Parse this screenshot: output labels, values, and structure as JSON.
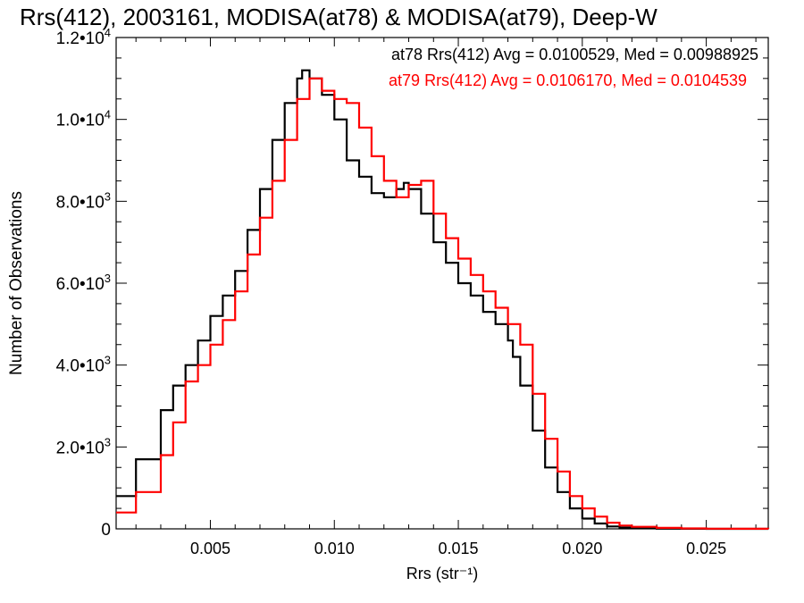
{
  "chart_data": {
    "type": "line",
    "title": "Rrs(412), 2003161, MODISA(at78) & MODISA(at79), Deep-W",
    "xlabel": "Rrs (str⁻¹)",
    "ylabel": "Number of Observations",
    "xlim": [
      0.0012,
      0.0275
    ],
    "ylim": [
      0,
      12000
    ],
    "x_ticks": [
      {
        "value": 0.005,
        "label": "0.005"
      },
      {
        "value": 0.01,
        "label": "0.010"
      },
      {
        "value": 0.015,
        "label": "0.015"
      },
      {
        "value": 0.02,
        "label": "0.020"
      },
      {
        "value": 0.025,
        "label": "0.025"
      }
    ],
    "y_ticks": [
      {
        "value": 0,
        "mantissa": "0",
        "exponent": ""
      },
      {
        "value": 2000,
        "mantissa": "2.0•10",
        "exponent": "3"
      },
      {
        "value": 4000,
        "mantissa": "4.0•10",
        "exponent": "3"
      },
      {
        "value": 6000,
        "mantissa": "6.0•10",
        "exponent": "3"
      },
      {
        "value": 8000,
        "mantissa": "8.0•10",
        "exponent": "3"
      },
      {
        "value": 10000,
        "mantissa": "1.0•10",
        "exponent": "4"
      },
      {
        "value": 12000,
        "mantissa": "1.2•10",
        "exponent": "4"
      }
    ],
    "grid": false,
    "legend_position": "top-right",
    "series": [
      {
        "name": "at78",
        "label": "at78 Rrs(412) Avg = 0.0100529, Med = 0.00988925",
        "color": "#000000",
        "style": "step",
        "x": [
          0.0012,
          0.002,
          0.003,
          0.0035,
          0.004,
          0.0045,
          0.005,
          0.0055,
          0.006,
          0.0065,
          0.007,
          0.0075,
          0.008,
          0.0085,
          0.0087,
          0.009,
          0.0095,
          0.01,
          0.0105,
          0.011,
          0.0115,
          0.012,
          0.0125,
          0.0128,
          0.013,
          0.0135,
          0.014,
          0.0145,
          0.015,
          0.0155,
          0.016,
          0.0165,
          0.017,
          0.0172,
          0.0175,
          0.018,
          0.0185,
          0.019,
          0.0195,
          0.02,
          0.0205,
          0.021,
          0.0215,
          0.022,
          0.023,
          0.024,
          0.025,
          0.026,
          0.0275
        ],
        "y": [
          800,
          1700,
          2900,
          3500,
          4000,
          4600,
          5200,
          5700,
          6300,
          7300,
          8300,
          9500,
          10400,
          11000,
          11200,
          11000,
          10600,
          10000,
          9000,
          8600,
          8200,
          8100,
          8300,
          8450,
          8300,
          7700,
          7000,
          6500,
          6000,
          5700,
          5300,
          5000,
          4600,
          4200,
          3500,
          2400,
          1500,
          900,
          500,
          250,
          130,
          60,
          30,
          15,
          5,
          2,
          1,
          0,
          0
        ]
      },
      {
        "name": "at79",
        "label": "at79 Rrs(412) Avg = 0.0106170, Med = 0.0104539",
        "color": "#ff0000",
        "style": "step",
        "x": [
          0.0012,
          0.002,
          0.003,
          0.0035,
          0.004,
          0.0045,
          0.005,
          0.0055,
          0.006,
          0.0065,
          0.007,
          0.0075,
          0.008,
          0.0085,
          0.009,
          0.0095,
          0.01,
          0.0105,
          0.011,
          0.0115,
          0.012,
          0.0125,
          0.013,
          0.0135,
          0.014,
          0.0145,
          0.015,
          0.0155,
          0.016,
          0.0165,
          0.017,
          0.0175,
          0.018,
          0.0185,
          0.019,
          0.0195,
          0.02,
          0.0205,
          0.021,
          0.0215,
          0.022,
          0.023,
          0.024,
          0.025,
          0.026,
          0.0275
        ],
        "y": [
          400,
          900,
          1800,
          2600,
          3600,
          4000,
          4500,
          5100,
          5800,
          6700,
          7600,
          8500,
          9500,
          10500,
          11000,
          10700,
          10500,
          10400,
          9800,
          9100,
          8500,
          8100,
          8400,
          8500,
          7700,
          7100,
          6600,
          6200,
          5800,
          5400,
          5000,
          4500,
          3300,
          2200,
          1400,
          800,
          500,
          300,
          150,
          80,
          50,
          25,
          10,
          5,
          2,
          0
        ]
      }
    ]
  }
}
